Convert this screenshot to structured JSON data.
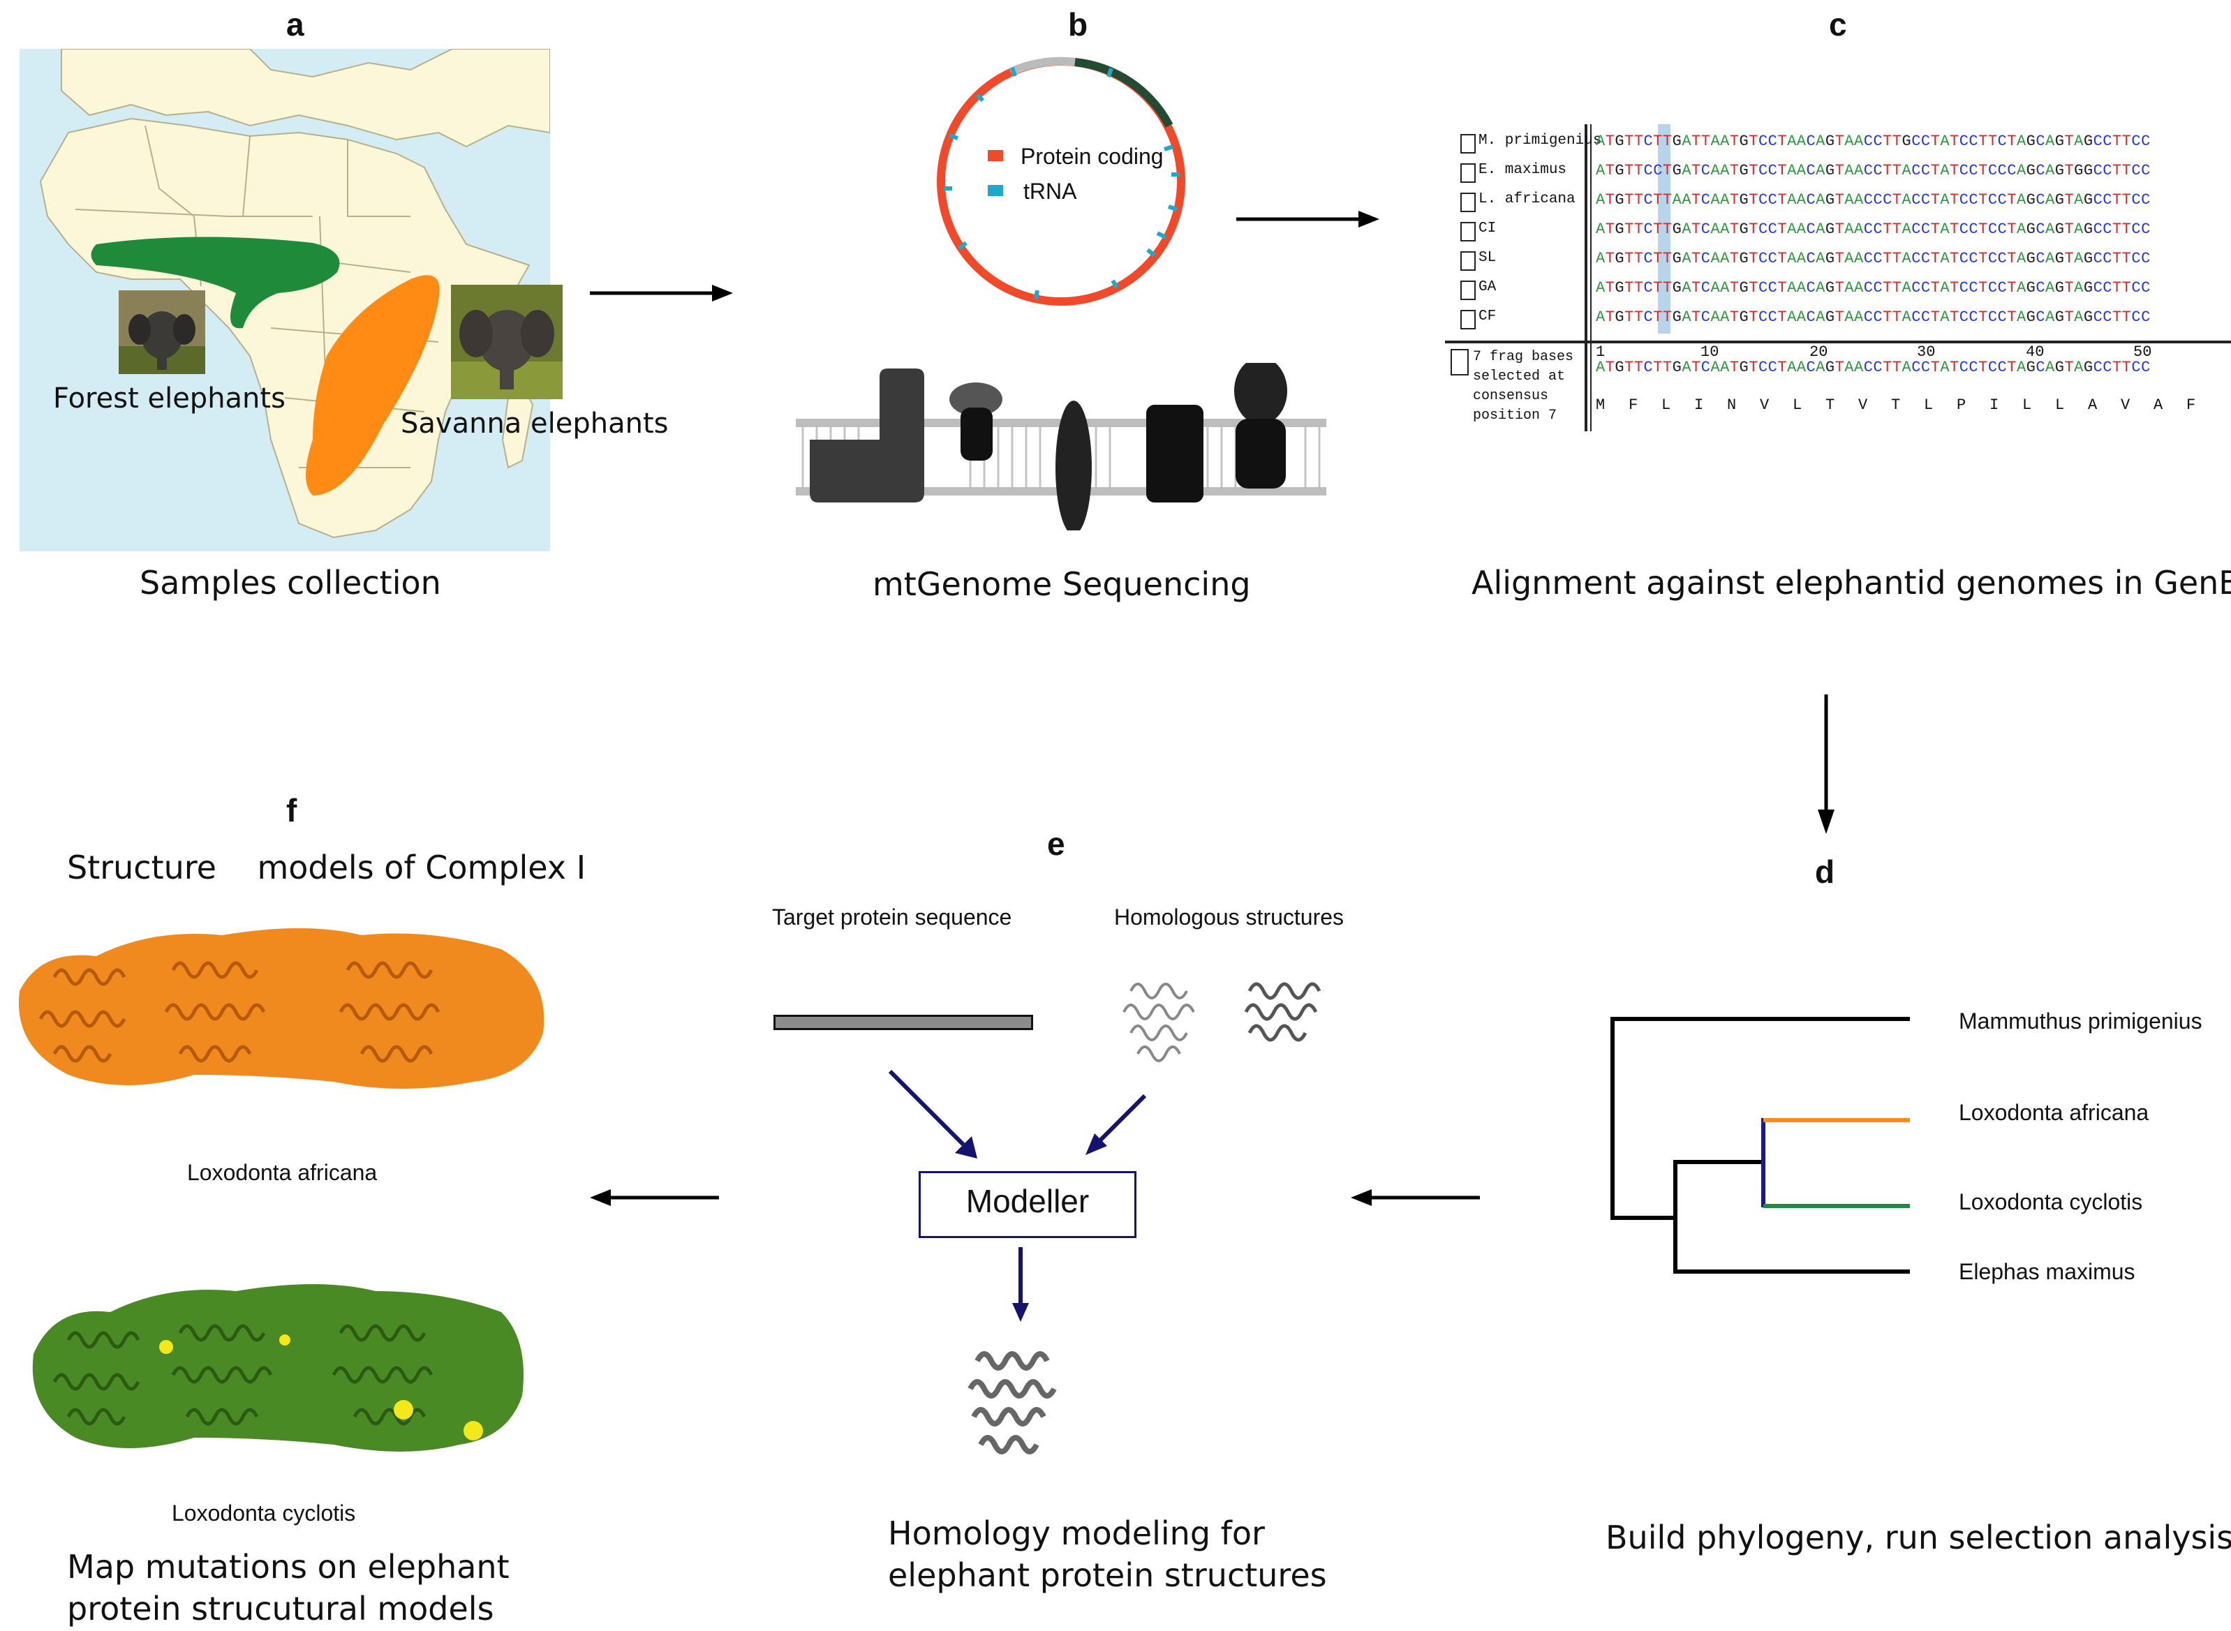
{
  "panels": {
    "a": {
      "letter": "a",
      "caption": "Samples collection",
      "forest_label": "Forest elephants",
      "savanna_label": "Savanna elephants",
      "colors": {
        "forest": "#1e8a3a",
        "savanna": "#ff8a14",
        "ocean": "#d4ecf4",
        "land": "#fbf7d8"
      }
    },
    "b": {
      "letter": "b",
      "caption": "mtGenome Sequencing",
      "legend": [
        {
          "label": "Protein coding",
          "color": "#f04a2a"
        },
        {
          "label": "tRNA",
          "color": "#20a8c8"
        }
      ]
    },
    "c": {
      "letter": "c",
      "caption": "Alignment against elephantid genomes in GenBank",
      "rows": [
        {
          "name": "M. primigenius",
          "seq": "ATGTTCTTGATTAATGTCCTAACAGTAACCTTGCCTATCCTTCTAGCAGTAGCCTTCC"
        },
        {
          "name": "E. maximus",
          "seq": "ATGTTCCTGATCAATGTCCTAACAGTAACCTTACCTATCCTCCCAGCAGTGGCCTTCC"
        },
        {
          "name": "L. africana",
          "seq": "ATGTTCTTAATCAATGTCCTAACAGTAACCCTACCTATCCTCCTAGCAGTAGCCTTCC"
        },
        {
          "name": "CI",
          "seq": "ATGTTCTTGATCAATGTCCTAACAGTAACCTTACCTATCCTCCTAGCAGTAGCCTTCC"
        },
        {
          "name": "SL",
          "seq": "ATGTTCTTGATCAATGTCCTAACAGTAACCTTACCTATCCTCCTAGCAGTAGCCTTCC"
        },
        {
          "name": "GA",
          "seq": "ATGTTCTTGATCAATGTCCTAACAGTAACCTTACCTATCCTCCTAGCAGTAGCCTTCC"
        },
        {
          "name": "CF",
          "seq": "ATGTTCTTGATCAATGTCCTAACAGTAACCTTACCTATCCTCCTAGCAGTAGCCTTCC"
        }
      ],
      "consensus_note": [
        "7 frag bases",
        "selected at",
        "consensus",
        "position 7"
      ],
      "ruler": [
        "1",
        "10",
        "20",
        "30",
        "40",
        "50"
      ],
      "consensus_seq": "ATGTTCTTGATCAATGTCCTAACAGTAACCTTACCTATCCTCCTAGCAGTAGCCTTCC",
      "amino_acids": [
        "M",
        "F",
        "L",
        "I",
        "N",
        "V",
        "L",
        "T",
        "V",
        "T",
        "L",
        "P",
        "I",
        "L",
        "L",
        "A",
        "V",
        "A",
        "F"
      ],
      "base_colors": {
        "A": "#2a9a3a",
        "T": "#d42a2a",
        "G": "#222222",
        "C": "#2a3ad0"
      }
    },
    "d": {
      "letter": "d",
      "caption": "Build phylogeny, run selection analysis",
      "taxa": [
        "Mammuthus primigenius",
        "Loxodonta africana",
        "Loxodonta cyclotis",
        "Elephas maximus"
      ]
    },
    "e": {
      "letter": "e",
      "caption_line1": "Homology modeling for",
      "caption_line2": "elephant protein structures",
      "target_label": "Target protein sequence",
      "homologous_label": "Homologous structures",
      "modeller_label": "Modeller"
    },
    "f": {
      "letter": "f",
      "title": "Structure    models of Complex I",
      "africana_label": "Loxodonta africana",
      "cyclotis_label": "Loxodonta cyclotis",
      "caption_line1": "Map mutations on elephant",
      "caption_line2": "protein strucutural models"
    }
  }
}
